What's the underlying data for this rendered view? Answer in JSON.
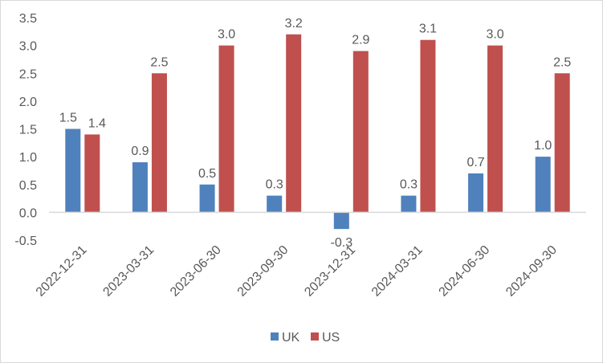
{
  "chart_data": {
    "type": "bar",
    "title": "",
    "xlabel": "",
    "ylabel": "",
    "categories": [
      "2022-12-31",
      "2023-03-31",
      "2023-06-30",
      "2023-09-30",
      "2023-12-31",
      "2024-03-31",
      "2024-06-30",
      "2024-09-30"
    ],
    "series": [
      {
        "name": "UK",
        "color": "#4F81BD",
        "values": [
          1.5,
          0.9,
          0.5,
          0.3,
          -0.3,
          0.3,
          0.7,
          1.0
        ],
        "labels": [
          "1.5",
          "0.9",
          "0.5",
          "0.3",
          "-0.3",
          "0.3",
          "0.7",
          "1.0"
        ]
      },
      {
        "name": "US",
        "color": "#C0504D",
        "values": [
          1.4,
          2.5,
          3.0,
          3.2,
          2.9,
          3.1,
          3.0,
          2.5
        ],
        "labels": [
          "1.4",
          "2.5",
          "3.0",
          "3.2",
          "2.9",
          "3.1",
          "3.0",
          "2.5"
        ]
      }
    ],
    "ylim": [
      -0.5,
      3.5
    ],
    "yticks": [
      "-0.5",
      "0.0",
      "0.5",
      "1.0",
      "1.5",
      "2.0",
      "2.5",
      "3.0",
      "3.5"
    ],
    "grid": false,
    "legend": "bottom",
    "data_labels": true
  }
}
